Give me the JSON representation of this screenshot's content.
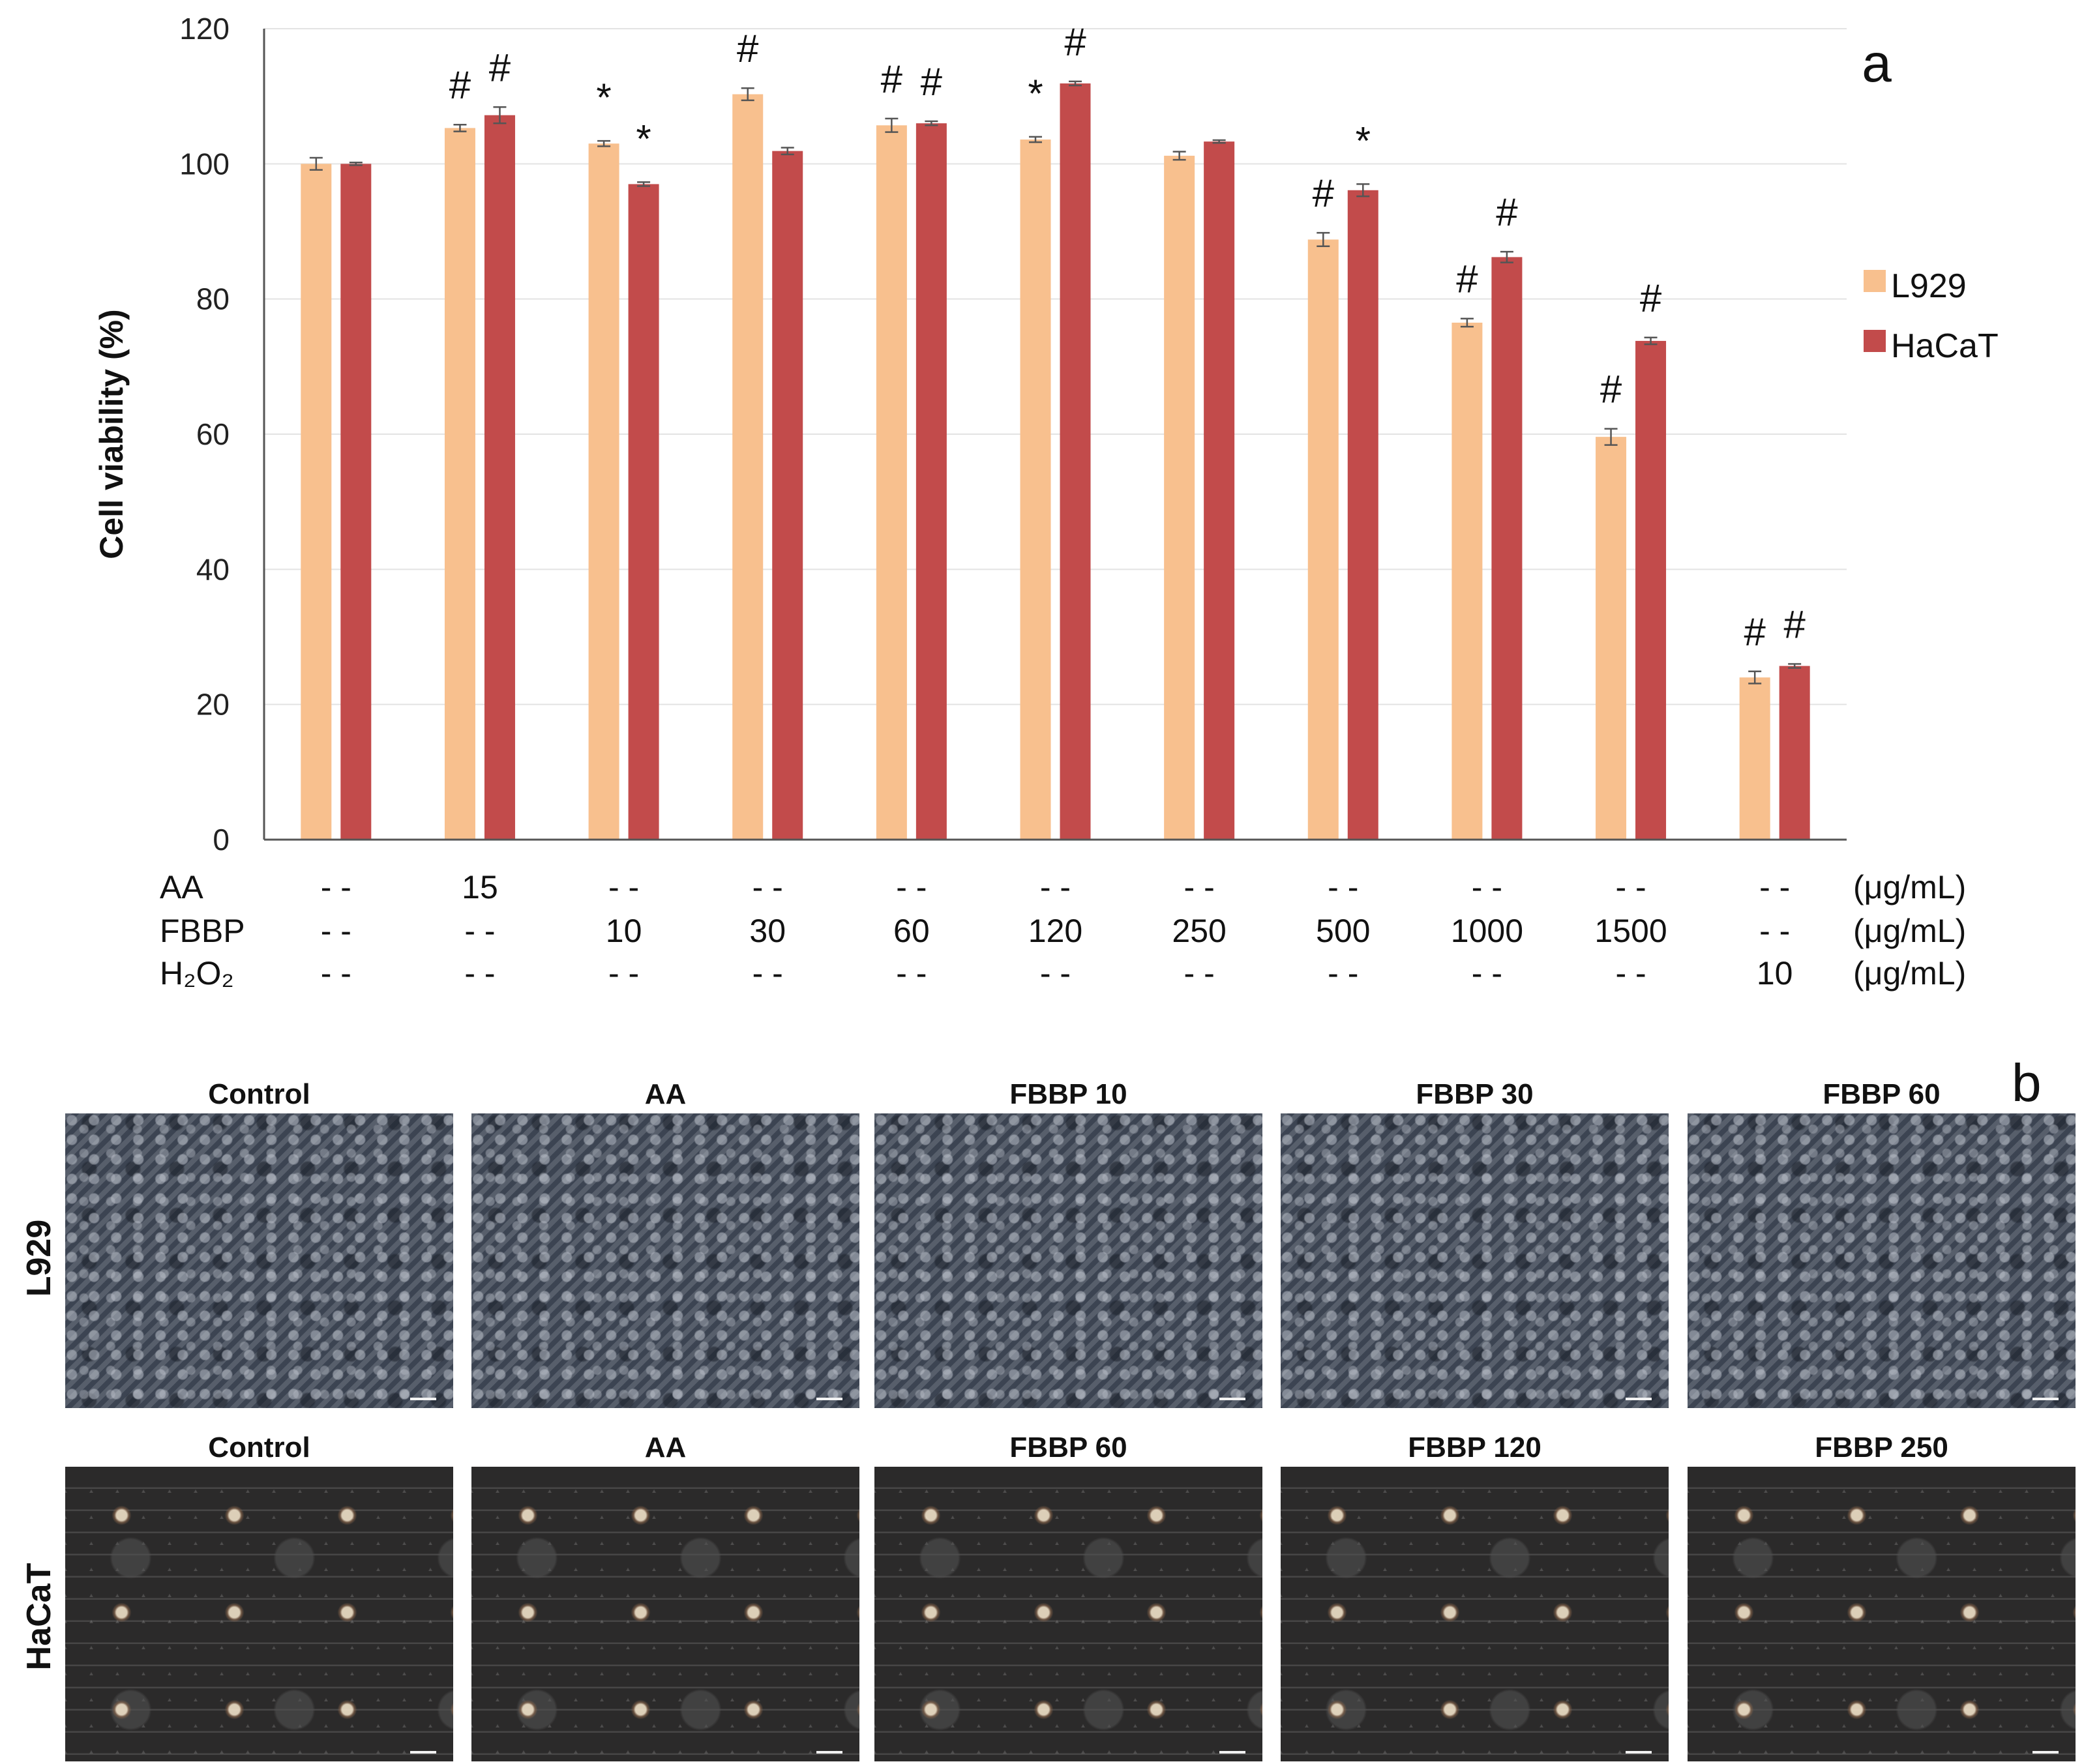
{
  "chart_data": {
    "type": "bar",
    "panel_label": "a",
    "ylabel": "Cell viability (%)",
    "ylim": [
      0,
      120
    ],
    "yticks": [
      "0",
      "20",
      "40",
      "60",
      "80",
      "100",
      "120"
    ],
    "grid": true,
    "legend_position": "right",
    "colors": {
      "L929": "#f8c08e",
      "HaCaT": "#c24b4b"
    },
    "series": [
      {
        "name": "L929",
        "values": [
          100.0,
          105.3,
          103.0,
          110.3,
          105.7,
          103.6,
          101.2,
          88.8,
          76.5,
          59.6,
          24.0
        ],
        "errors": [
          0.9,
          0.5,
          0.4,
          0.9,
          1.0,
          0.4,
          0.6,
          1.0,
          0.6,
          1.2,
          0.9
        ]
      },
      {
        "name": "HaCaT",
        "values": [
          100.0,
          107.2,
          97.0,
          101.9,
          106.0,
          111.9,
          103.3,
          96.1,
          86.2,
          73.8,
          25.7
        ],
        "errors": [
          0.2,
          1.2,
          0.3,
          0.5,
          0.3,
          0.3,
          0.2,
          0.9,
          0.8,
          0.5,
          0.3
        ]
      }
    ],
    "annotations": {
      "L929": [
        "",
        "#",
        "*",
        "#",
        "#",
        "*",
        "",
        "#",
        "#",
        "#",
        "#"
      ],
      "HaCaT": [
        "",
        "#",
        "*",
        "",
        "#",
        "#",
        "",
        "*",
        "#",
        "#",
        "#"
      ]
    },
    "treatments": [
      {
        "name": "AA",
        "unit": "(μg/mL)",
        "values": [
          "- -",
          "15",
          "- -",
          "- -",
          "- -",
          "- -",
          "- -",
          "- -",
          "- -",
          "- -",
          "- -"
        ]
      },
      {
        "name": "FBBP",
        "unit": "(μg/mL)",
        "values": [
          "- -",
          "- -",
          "10",
          "30",
          "60",
          "120",
          "250",
          "500",
          "1000",
          "1500",
          "- -"
        ]
      },
      {
        "name": "H₂O₂",
        "unit": "(μg/mL)",
        "values": [
          "- -",
          "- -",
          "- -",
          "- -",
          "- -",
          "- -",
          "- -",
          "- -",
          "- -",
          "- -",
          "10"
        ]
      }
    ]
  },
  "panel_b": {
    "label": "b",
    "rows": [
      {
        "name": "L929",
        "titles": [
          "Control",
          "AA",
          "FBBP 10",
          "FBBP 30",
          "FBBP 60"
        ]
      },
      {
        "name": "HaCaT",
        "titles": [
          "Control",
          "AA",
          "FBBP 60",
          "FBBP 120",
          "FBBP 250"
        ]
      }
    ]
  }
}
